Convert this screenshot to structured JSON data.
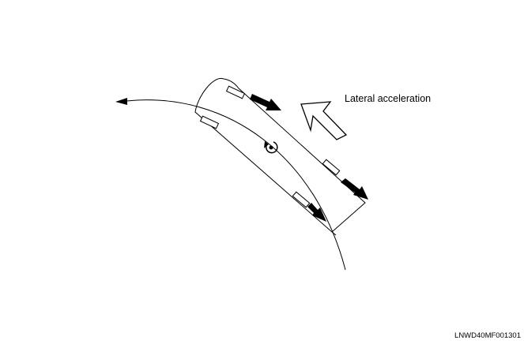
{
  "labels": {
    "lateral_acceleration": "Lateral acceleration",
    "figure_code": "LNWD40MF001301"
  },
  "icons": {
    "yaw": "yaw-rotation-icon",
    "force": "force-arrow-icon",
    "lateral": "hollow-arrow-icon",
    "direction": "direction-arrowhead-icon"
  },
  "colors": {
    "ink": "#000000",
    "paper": "#ffffff"
  }
}
